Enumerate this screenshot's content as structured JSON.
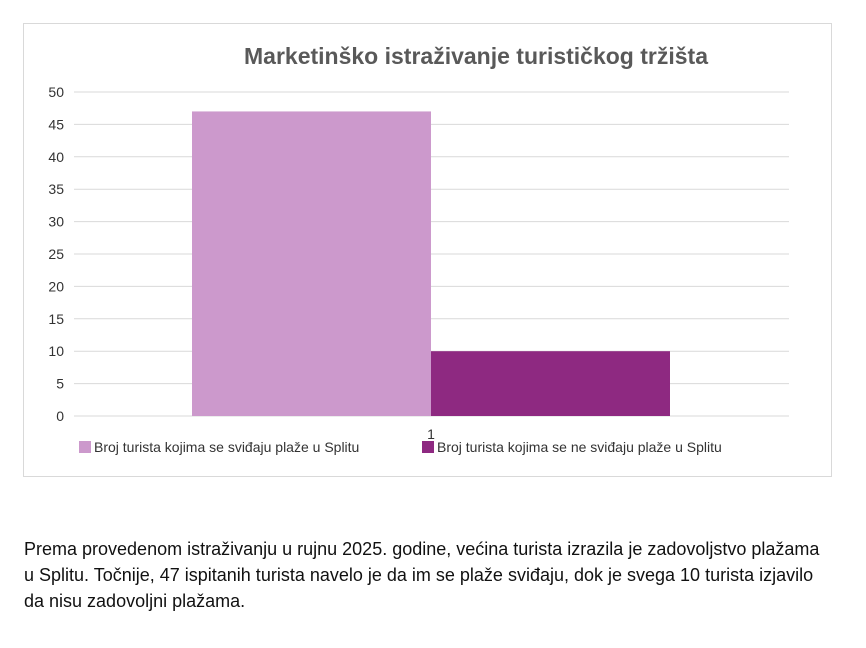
{
  "chart_data": {
    "type": "bar",
    "title": "Marketinško istraživanje turističkog tržišta",
    "categories": [
      "1"
    ],
    "series": [
      {
        "name": "Broj turista kojima se sviđaju plaže u Splitu",
        "values": [
          47
        ],
        "color": "#cc99cc"
      },
      {
        "name": "Broj turista kojima se ne sviđaju plaže u Splitu",
        "values": [
          10
        ],
        "color": "#8e2981"
      }
    ],
    "ylim": [
      0,
      50
    ],
    "yticks": [
      0,
      5,
      10,
      15,
      20,
      25,
      30,
      35,
      40,
      45,
      50
    ],
    "grid": true,
    "legend": "bottom"
  },
  "caption": "Prema provedenom istraživanju u rujnu 2025. godine, većina turista izrazila je zadovoljstvo plažama u Splitu. Točnije, 47 ispitanih turista navelo je da im se plaže sviđaju, dok je svega 10 turista izjavilo da nisu zadovoljni plažama."
}
